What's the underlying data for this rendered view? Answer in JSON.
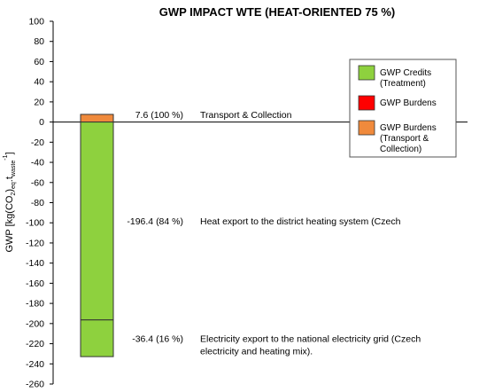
{
  "chart_data": {
    "type": "bar",
    "title": "GWP IMPACT WTE (HEAT-ORIENTED 75 %)",
    "ylabel": {
      "main": "GWP [kg(CO",
      "sub1": "2",
      "mid": ")",
      "sub2": "eq",
      "mid2": ".t",
      "sub3": "waste",
      "sup": "-1",
      "end": "]"
    },
    "ylim": [
      -260,
      100
    ],
    "yticks": [
      100,
      80,
      60,
      40,
      20,
      0,
      -20,
      -40,
      -60,
      -80,
      -100,
      -120,
      -140,
      -160,
      -180,
      -200,
      -220,
      -240,
      -260
    ],
    "grid": false,
    "stack": [
      {
        "series": "GWP Burdens (Transport & Collection)",
        "from": 0,
        "to": 7.6
      },
      {
        "series": "GWP Credits (Treatment)",
        "from": 0,
        "to": -196.4
      },
      {
        "series": "GWP Credits (Treatment)",
        "from": -196.4,
        "to": -232.8
      }
    ],
    "annotations": [
      {
        "value_label": "7.6 (100 %)",
        "text_lines": [
          "Transport & Collection"
        ],
        "y": 7.6
      },
      {
        "value_label": "-196.4 (84 %)",
        "text_lines": [
          "Heat export to the district heating system (Czech"
        ],
        "y": -98
      },
      {
        "value_label": "-36.4 (16 %)",
        "text_lines": [
          "Electricity export to the national electricity grid (Czech",
          "electricity and heating mix)."
        ],
        "y": -214.6
      }
    ],
    "legend": {
      "position": "top-right",
      "items": [
        {
          "label_lines": [
            "GWP Credits",
            "(Treatment)"
          ],
          "color": "#8ed13e"
        },
        {
          "label_lines": [
            "GWP Burdens"
          ],
          "color": "#ff0000"
        },
        {
          "label_lines": [
            "GWP Burdens",
            "(Transport &",
            "Collection)"
          ],
          "color": "#f08a3c"
        }
      ]
    },
    "colors": {
      "credits": "#8ed13e",
      "burdens": "#ff0000",
      "transport": "#f08a3c"
    }
  }
}
